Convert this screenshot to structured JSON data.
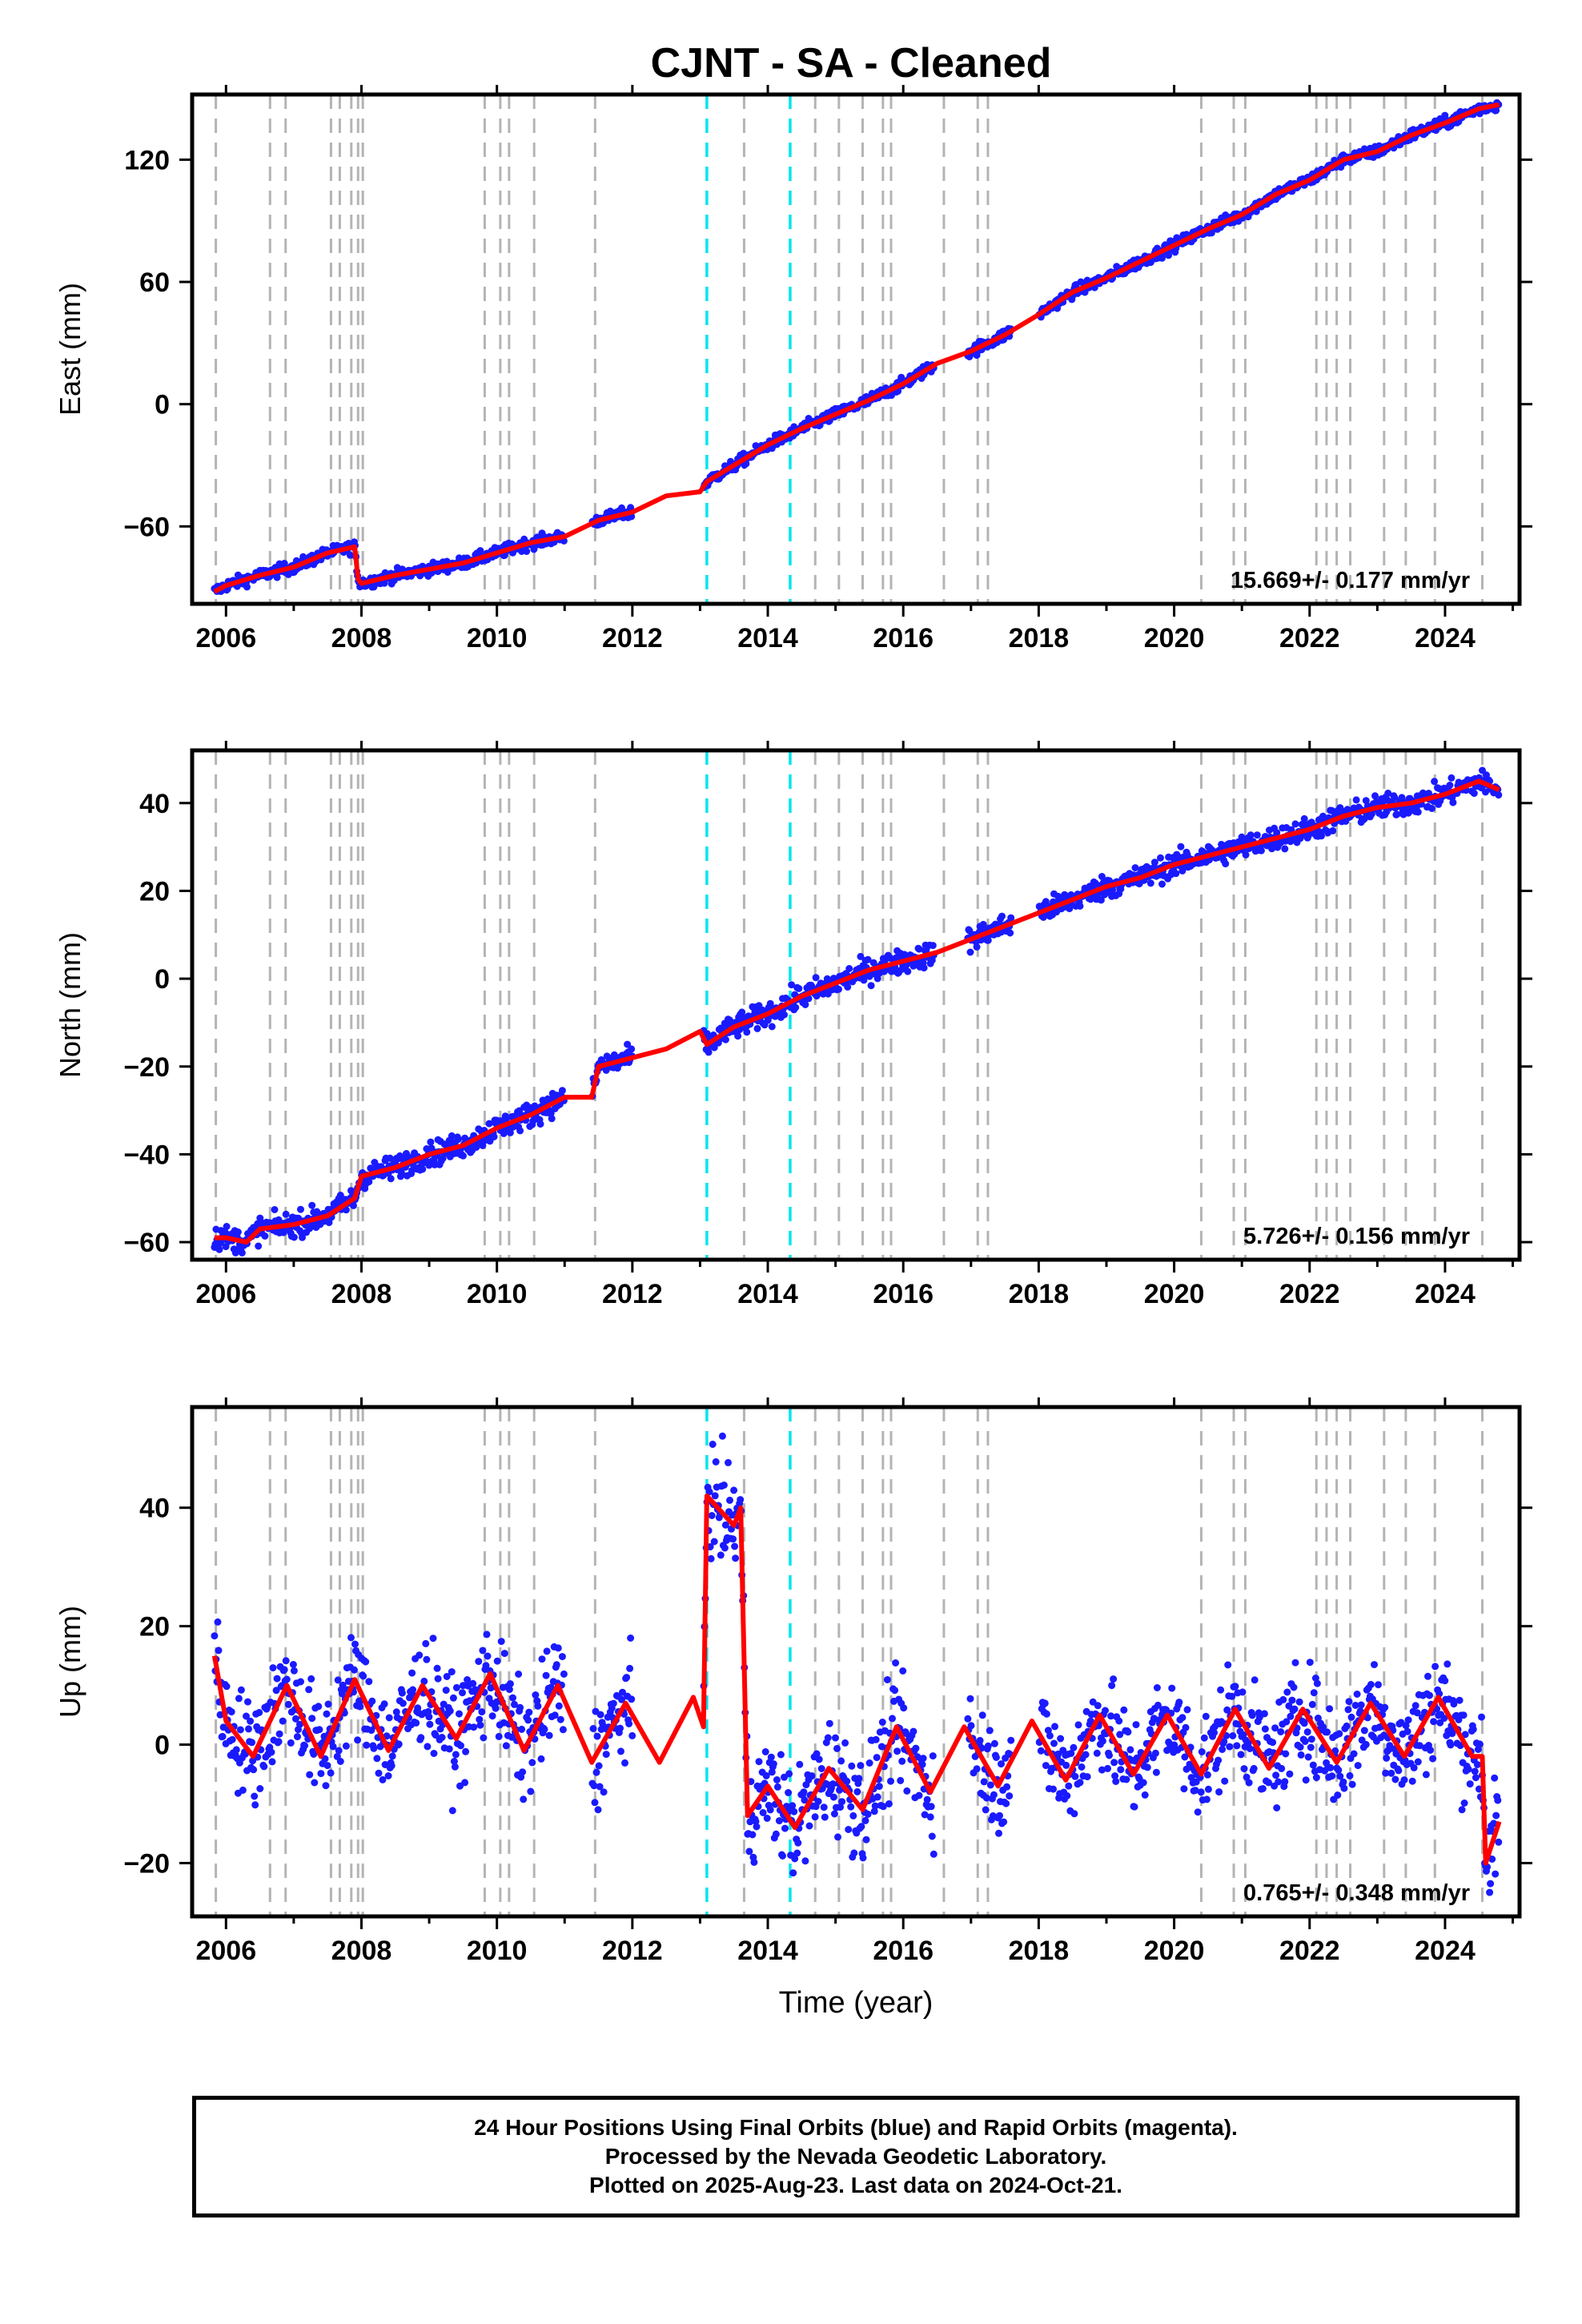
{
  "title": "CJNT  - SA - Cleaned",
  "colors": {
    "data_points": "#1a1aff",
    "model_fit": "#ff0000",
    "dashed_lines": "#b4b4b4",
    "cyan_lines": "#00e5ee"
  },
  "footer": {
    "line1": "24 Hour Positions Using Final Orbits (blue) and Rapid Orbits (magenta).",
    "line2": "Processed by the Nevada Geodetic Laboratory.",
    "line3": "Plotted on 2025-Aug-23. Last data on 2024-Oct-21."
  },
  "chart_data": [
    {
      "type": "scatter",
      "panel": "east",
      "title": "CJNT  - SA - Cleaned",
      "xlabel": "",
      "ylabel": "East (mm)",
      "xlim": [
        2005.5,
        2025.1
      ],
      "ylim": [
        -98,
        152
      ],
      "x_ticks": [
        2006,
        2008,
        2010,
        2012,
        2014,
        2016,
        2018,
        2020,
        2022,
        2024
      ],
      "y_ticks": [
        -60,
        0,
        60,
        120
      ],
      "y_tick_labels": [
        "−60",
        "0",
        "60",
        "120"
      ],
      "annotation": "15.669+/- 0.177 mm/yr",
      "grid": false,
      "breakpoints_gray": [
        2005.85,
        2006.65,
        2006.88,
        2007.55,
        2007.68,
        2007.85,
        2007.95,
        2008.02,
        2009.82,
        2010.05,
        2010.18,
        2010.55,
        2011.45,
        2013.65,
        2014.7,
        2015.05,
        2015.4,
        2015.7,
        2015.82,
        2016.6,
        2017.1,
        2017.25,
        2020.4,
        2020.88,
        2021.05,
        2022.1,
        2022.25,
        2022.4,
        2022.6,
        2023.1,
        2023.42,
        2023.85,
        2024.55
      ],
      "breakpoints_cyan": [
        2013.1,
        2014.33
      ],
      "series": [
        {
          "name": "",
          "x": [
            2005.83,
            2006.0,
            2006.5,
            2007.0,
            2007.5,
            2007.9,
            2007.95,
            2008.0,
            2008.5,
            2009.0,
            2009.5,
            2010.0,
            2010.5,
            2011.0,
            2011.5,
            2012.0,
            2012.5,
            2013.0,
            2013.1,
            2013.5,
            2014.0,
            2014.5,
            2015.0,
            2015.5,
            2016.0,
            2016.5,
            2017.0,
            2017.5,
            2018.0,
            2018.5,
            2019.0,
            2019.5,
            2020.0,
            2020.5,
            2021.0,
            2021.5,
            2022.0,
            2022.5,
            2023.0,
            2023.5,
            2024.0,
            2024.5,
            2024.8
          ],
          "y": [
            -92,
            -89,
            -84,
            -80,
            -73,
            -70,
            -86,
            -88,
            -84,
            -81,
            -78,
            -73,
            -68,
            -65,
            -57,
            -53,
            -45,
            -43,
            -38,
            -30,
            -20,
            -12,
            -5,
            2,
            10,
            20,
            26,
            34,
            44,
            55,
            62,
            70,
            78,
            86,
            93,
            103,
            110,
            120,
            124,
            132,
            138,
            145,
            147
          ]
        }
      ]
    },
    {
      "type": "scatter",
      "panel": "north",
      "xlabel": "",
      "ylabel": "North (mm)",
      "xlim": [
        2005.5,
        2025.1
      ],
      "ylim": [
        -64,
        52
      ],
      "x_ticks": [
        2006,
        2008,
        2010,
        2012,
        2014,
        2016,
        2018,
        2020,
        2022,
        2024
      ],
      "y_ticks": [
        -60,
        -40,
        -20,
        0,
        20,
        40
      ],
      "y_tick_labels": [
        "−60",
        "−40",
        "−20",
        "0",
        "20",
        "40"
      ],
      "annotation": "5.726+/- 0.156 mm/yr",
      "grid": false,
      "breakpoints_gray": [
        2005.85,
        2006.65,
        2006.88,
        2007.55,
        2007.68,
        2007.85,
        2007.95,
        2008.02,
        2009.82,
        2010.05,
        2010.18,
        2010.55,
        2011.45,
        2013.65,
        2014.7,
        2015.05,
        2015.4,
        2015.7,
        2015.82,
        2016.6,
        2017.1,
        2017.25,
        2020.4,
        2020.88,
        2021.05,
        2022.1,
        2022.25,
        2022.4,
        2022.6,
        2023.1,
        2023.42,
        2023.85,
        2024.55
      ],
      "breakpoints_cyan": [
        2013.1,
        2014.33
      ],
      "series": [
        {
          "name": "",
          "x": [
            2005.83,
            2006.0,
            2006.3,
            2006.5,
            2007.0,
            2007.5,
            2007.9,
            2008.0,
            2008.5,
            2009.0,
            2009.5,
            2010.0,
            2010.5,
            2011.0,
            2011.4,
            2011.5,
            2012.0,
            2012.5,
            2013.0,
            2013.1,
            2013.5,
            2014.0,
            2014.5,
            2015.0,
            2015.5,
            2016.0,
            2016.5,
            2017.0,
            2017.5,
            2018.0,
            2018.5,
            2019.0,
            2019.5,
            2020.0,
            2020.5,
            2021.0,
            2021.5,
            2022.0,
            2022.5,
            2023.0,
            2023.5,
            2024.0,
            2024.5,
            2024.8
          ],
          "y": [
            -59,
            -59,
            -60,
            -57,
            -56,
            -54,
            -50,
            -45,
            -43,
            -40,
            -38,
            -34,
            -31,
            -27,
            -27,
            -20,
            -18,
            -16,
            -12,
            -15,
            -11,
            -8,
            -4,
            -1,
            2,
            4,
            6,
            9,
            12,
            15,
            18,
            21,
            23,
            26,
            28,
            30,
            32,
            34,
            37,
            39,
            40,
            42,
            45,
            43
          ]
        }
      ]
    },
    {
      "type": "scatter",
      "panel": "up",
      "xlabel": "Time (year)",
      "ylabel": "Up (mm)",
      "xlim": [
        2005.5,
        2025.1
      ],
      "ylim": [
        -29,
        57
      ],
      "x_ticks": [
        2006,
        2008,
        2010,
        2012,
        2014,
        2016,
        2018,
        2020,
        2022,
        2024
      ],
      "y_ticks": [
        -20,
        0,
        20,
        40
      ],
      "y_tick_labels": [
        "−20",
        "0",
        "20",
        "40"
      ],
      "annotation": "0.765+/- 0.348 mm/yr",
      "grid": false,
      "breakpoints_gray": [
        2005.85,
        2006.65,
        2006.88,
        2007.55,
        2007.68,
        2007.85,
        2007.95,
        2008.02,
        2009.82,
        2010.05,
        2010.18,
        2010.55,
        2011.45,
        2013.65,
        2014.7,
        2015.05,
        2015.4,
        2015.7,
        2015.82,
        2016.6,
        2017.1,
        2017.25,
        2020.4,
        2020.88,
        2021.05,
        2022.1,
        2022.25,
        2022.4,
        2022.6,
        2023.1,
        2023.42,
        2023.85,
        2024.55
      ],
      "breakpoints_cyan": [
        2013.1,
        2014.33
      ],
      "series": [
        {
          "name": "",
          "x": [
            2005.83,
            2006.0,
            2006.4,
            2006.9,
            2007.4,
            2007.9,
            2008.4,
            2008.9,
            2009.4,
            2009.9,
            2010.4,
            2010.9,
            2011.4,
            2011.9,
            2012.4,
            2012.9,
            2013.05,
            2013.1,
            2013.5,
            2013.6,
            2013.7,
            2014.0,
            2014.4,
            2014.9,
            2015.4,
            2015.9,
            2016.4,
            2016.9,
            2017.4,
            2017.9,
            2018.4,
            2018.9,
            2019.4,
            2019.9,
            2020.4,
            2020.9,
            2021.4,
            2021.9,
            2022.4,
            2022.9,
            2023.4,
            2023.9,
            2024.4,
            2024.55,
            2024.6,
            2024.8
          ],
          "y": [
            15,
            4,
            -2,
            10,
            -2,
            11,
            -1,
            10,
            1,
            12,
            -1,
            10,
            -3,
            7,
            -3,
            8,
            3,
            42,
            37,
            40,
            -12,
            -7,
            -14,
            -4,
            -11,
            3,
            -8,
            3,
            -7,
            4,
            -6,
            5,
            -5,
            5,
            -5,
            6,
            -4,
            6,
            -3,
            7,
            -2,
            8,
            -2,
            -2,
            -20,
            -13
          ]
        }
      ]
    }
  ]
}
